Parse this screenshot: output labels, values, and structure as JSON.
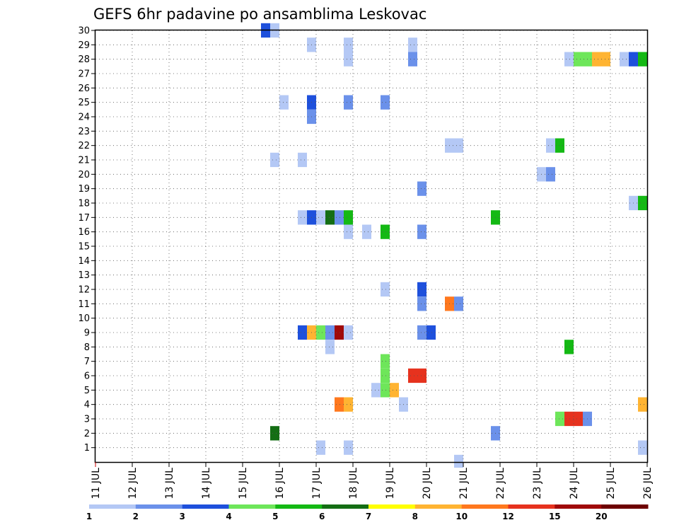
{
  "chart_data": {
    "type": "heatmap",
    "title": "GEFS 6hr padavine po ansamblima Leskovac",
    "xlabel": "",
    "ylabel": "",
    "x_ticks": [
      "11 JUL",
      "12 JUL",
      "13 JUL",
      "14 JUL",
      "15 JUL",
      "16 JUL",
      "17 JUL",
      "18 JUL",
      "19 JUL",
      "20 JUL",
      "21 JUL",
      "22 JUL",
      "23 JUL",
      "24 JUL",
      "25 JUL",
      "26 JUL"
    ],
    "x_range_days": [
      11,
      26
    ],
    "y_ticks": [
      "1",
      "2",
      "3",
      "4",
      "5",
      "6",
      "7",
      "8",
      "9",
      "10",
      "11",
      "12",
      "13",
      "14",
      "15",
      "16",
      "17",
      "18",
      "19",
      "20",
      "21",
      "22",
      "23",
      "24",
      "25",
      "26",
      "27",
      "28",
      "29",
      "30"
    ],
    "y_range": [
      0,
      30
    ],
    "grid": true,
    "legend": {
      "placement": "bottom",
      "labels": [
        "1",
        "2",
        "3",
        "4",
        "5",
        "6",
        "7",
        "8",
        "10",
        "12",
        "15",
        "20"
      ],
      "colors": [
        "#b4c8f5",
        "#6b91ea",
        "#1e50dc",
        "#6ee65a",
        "#14b914",
        "#146e14",
        "#ffff00",
        "#ffb432",
        "#ff781e",
        "#e6321e",
        "#a00a0a",
        "#6e0000"
      ]
    },
    "cells": [
      {
        "day": 15.5,
        "member": 30,
        "class": 3
      },
      {
        "day": 15.75,
        "member": 30,
        "class": 1
      },
      {
        "day": 16.75,
        "member": 29,
        "class": 1
      },
      {
        "day": 17.75,
        "member": 29,
        "class": 1
      },
      {
        "day": 19.5,
        "member": 29,
        "class": 1
      },
      {
        "day": 17.75,
        "member": 28,
        "class": 1
      },
      {
        "day": 19.5,
        "member": 28,
        "class": 2
      },
      {
        "day": 23.75,
        "member": 28,
        "class": 1
      },
      {
        "day": 24.0,
        "member": 28,
        "class": 4
      },
      {
        "day": 24.25,
        "member": 28,
        "class": 4
      },
      {
        "day": 24.5,
        "member": 28,
        "class": 8
      },
      {
        "day": 24.75,
        "member": 28,
        "class": 8
      },
      {
        "day": 25.25,
        "member": 28,
        "class": 1
      },
      {
        "day": 25.5,
        "member": 28,
        "class": 3
      },
      {
        "day": 25.75,
        "member": 28,
        "class": 5
      },
      {
        "day": 16.0,
        "member": 25,
        "class": 1
      },
      {
        "day": 16.75,
        "member": 25,
        "class": 3
      },
      {
        "day": 17.75,
        "member": 25,
        "class": 2
      },
      {
        "day": 18.75,
        "member": 25,
        "class": 2
      },
      {
        "day": 16.75,
        "member": 24,
        "class": 2
      },
      {
        "day": 20.5,
        "member": 22,
        "class": 1
      },
      {
        "day": 20.75,
        "member": 22,
        "class": 1
      },
      {
        "day": 23.25,
        "member": 22,
        "class": 1
      },
      {
        "day": 23.5,
        "member": 22,
        "class": 5
      },
      {
        "day": 15.75,
        "member": 21,
        "class": 1
      },
      {
        "day": 16.5,
        "member": 21,
        "class": 1
      },
      {
        "day": 23.0,
        "member": 20,
        "class": 1
      },
      {
        "day": 23.25,
        "member": 20,
        "class": 2
      },
      {
        "day": 19.75,
        "member": 19,
        "class": 2
      },
      {
        "day": 25.5,
        "member": 18,
        "class": 1
      },
      {
        "day": 25.75,
        "member": 18,
        "class": 5
      },
      {
        "day": 16.5,
        "member": 17,
        "class": 1
      },
      {
        "day": 16.75,
        "member": 17,
        "class": 3
      },
      {
        "day": 17.0,
        "member": 17,
        "class": 1
      },
      {
        "day": 17.25,
        "member": 17,
        "class": 6
      },
      {
        "day": 17.5,
        "member": 17,
        "class": 2
      },
      {
        "day": 17.75,
        "member": 17,
        "class": 5
      },
      {
        "day": 21.75,
        "member": 17,
        "class": 5
      },
      {
        "day": 17.75,
        "member": 16,
        "class": 1
      },
      {
        "day": 18.25,
        "member": 16,
        "class": 1
      },
      {
        "day": 18.75,
        "member": 16,
        "class": 5
      },
      {
        "day": 19.75,
        "member": 16,
        "class": 2
      },
      {
        "day": 18.75,
        "member": 12,
        "class": 1
      },
      {
        "day": 19.75,
        "member": 12,
        "class": 3
      },
      {
        "day": 19.75,
        "member": 11,
        "class": 2
      },
      {
        "day": 20.5,
        "member": 11,
        "class": 9
      },
      {
        "day": 20.75,
        "member": 11,
        "class": 2
      },
      {
        "day": 16.5,
        "member": 9,
        "class": 3
      },
      {
        "day": 16.75,
        "member": 9,
        "class": 8
      },
      {
        "day": 17.0,
        "member": 9,
        "class": 4
      },
      {
        "day": 17.25,
        "member": 9,
        "class": 2
      },
      {
        "day": 17.5,
        "member": 9,
        "class": 11
      },
      {
        "day": 17.75,
        "member": 9,
        "class": 1
      },
      {
        "day": 19.75,
        "member": 9,
        "class": 2
      },
      {
        "day": 20.0,
        "member": 9,
        "class": 3
      },
      {
        "day": 17.25,
        "member": 8,
        "class": 1
      },
      {
        "day": 23.75,
        "member": 8,
        "class": 5
      },
      {
        "day": 18.75,
        "member": 7,
        "class": 4
      },
      {
        "day": 18.75,
        "member": 6,
        "class": 4
      },
      {
        "day": 19.5,
        "member": 6,
        "class": 10
      },
      {
        "day": 19.75,
        "member": 6,
        "class": 10
      },
      {
        "day": 18.5,
        "member": 5,
        "class": 1
      },
      {
        "day": 18.75,
        "member": 5,
        "class": 4
      },
      {
        "day": 19.0,
        "member": 5,
        "class": 8
      },
      {
        "day": 17.5,
        "member": 4,
        "class": 9
      },
      {
        "day": 17.75,
        "member": 4,
        "class": 8
      },
      {
        "day": 19.25,
        "member": 4,
        "class": 1
      },
      {
        "day": 25.75,
        "member": 4,
        "class": 8
      },
      {
        "day": 23.5,
        "member": 3,
        "class": 4
      },
      {
        "day": 23.75,
        "member": 3,
        "class": 10
      },
      {
        "day": 24.0,
        "member": 3,
        "class": 10
      },
      {
        "day": 24.25,
        "member": 3,
        "class": 2
      },
      {
        "day": 15.75,
        "member": 2,
        "class": 6
      },
      {
        "day": 21.75,
        "member": 2,
        "class": 2
      },
      {
        "day": 17.0,
        "member": 1,
        "class": 1
      },
      {
        "day": 17.75,
        "member": 1,
        "class": 1
      },
      {
        "day": 25.75,
        "member": 1,
        "class": 1
      },
      {
        "day": 20.75,
        "member": 0,
        "class": 1
      }
    ]
  }
}
